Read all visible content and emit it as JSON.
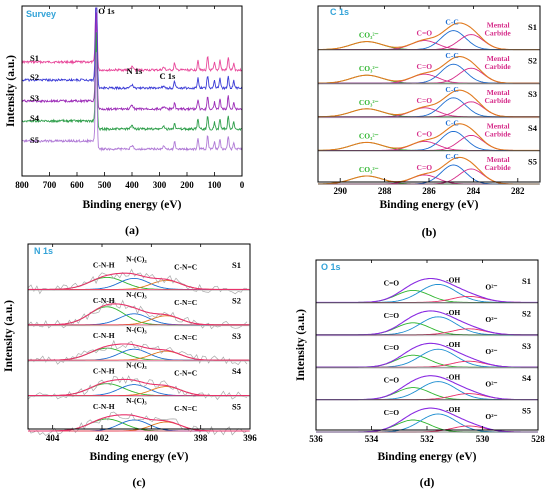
{
  "chart_data": [
    {
      "type": "line",
      "panel_label": "(a)",
      "title": "Survey",
      "title_color": "#33a3d8",
      "xlabel": "Binding energy (eV)",
      "ylabel": "Intensity (a.u.)",
      "xlim": [
        800,
        0
      ],
      "xticks": [
        800,
        700,
        600,
        500,
        400,
        300,
        200,
        100,
        0
      ],
      "annotations": [
        {
          "text": "O 1s",
          "x": 530,
          "y": 0.985
        },
        {
          "text": "N 1s",
          "x": 400,
          "y": 0.65
        },
        {
          "text": "C 1s",
          "x": 285,
          "y": 0.6
        }
      ],
      "series": [
        {
          "name": "S1",
          "color": "#e8499b"
        },
        {
          "name": "S2",
          "color": "#3a3ad6"
        },
        {
          "name": "S3",
          "color": "#9d2db8"
        },
        {
          "name": "S4",
          "color": "#2e9e4a"
        },
        {
          "name": "S5",
          "color": "#b07ad6"
        }
      ]
    },
    {
      "type": "line",
      "panel_label": "(b)",
      "title": "C 1s",
      "title_color": "#33a3d8",
      "xlabel": "Binding energy (eV)",
      "ylabel": "",
      "xlim": [
        291,
        281
      ],
      "xticks": [
        290,
        288,
        286,
        284,
        282
      ],
      "components": [
        {
          "label": "CO₃²⁻",
          "center": 288.8,
          "color": "#2fb52f"
        },
        {
          "label": "C=O",
          "center": 286.2,
          "color": "#d62d8a"
        },
        {
          "label": "C-C",
          "center": 284.9,
          "color": "#1f6ed1"
        },
        {
          "label": "Mental Carbide",
          "center": 283.9,
          "color": "#d62d8a"
        }
      ],
      "series": [
        {
          "name": "S1"
        },
        {
          "name": "S2"
        },
        {
          "name": "S3"
        },
        {
          "name": "S4"
        },
        {
          "name": "S5"
        }
      ]
    },
    {
      "type": "line",
      "panel_label": "(c)",
      "title": "N 1s",
      "title_color": "#33a3d8",
      "xlabel": "Binding energy (eV)",
      "ylabel": "Intensity (a.u.)",
      "xlim": [
        405,
        396
      ],
      "xticks": [
        404,
        402,
        400,
        398,
        396
      ],
      "components": [
        {
          "label": "C-N-H",
          "center": 401.8
        },
        {
          "label": "N-(C)₃",
          "center": 400.7
        },
        {
          "label": "C-N=C",
          "center": 399.4
        }
      ],
      "series": [
        {
          "name": "S1"
        },
        {
          "name": "S2"
        },
        {
          "name": "S3"
        },
        {
          "name": "S4"
        },
        {
          "name": "S5"
        }
      ]
    },
    {
      "type": "line",
      "panel_label": "(d)",
      "title": "O 1s",
      "title_color": "#33a3d8",
      "xlabel": "Binding energy (eV)",
      "ylabel": "Intensity (a.u.)",
      "xlim": [
        536,
        528
      ],
      "xticks": [
        536,
        534,
        532,
        530,
        528
      ],
      "components": [
        {
          "label": "C=O",
          "center": 532.7
        },
        {
          "label": "-OH",
          "center": 531.6
        },
        {
          "label": "O²⁻",
          "center": 530.4
        }
      ],
      "series": [
        {
          "name": "S1"
        },
        {
          "name": "S2"
        },
        {
          "name": "S3"
        },
        {
          "name": "S4"
        },
        {
          "name": "S5"
        }
      ]
    }
  ]
}
